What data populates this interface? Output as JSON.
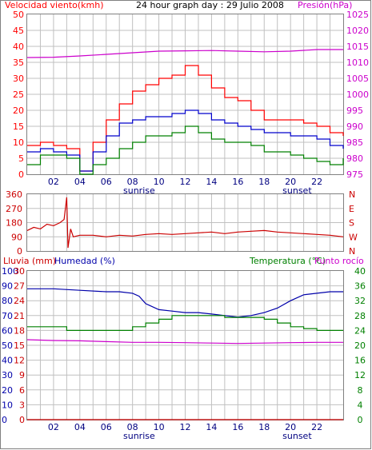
{
  "header": {
    "left_title": "Velocidad viento(kmh)",
    "center_title": "24 hour graph day : 29 Julio 2008",
    "right_title": "Presión(hPa)"
  },
  "colors": {
    "wind_max": "#ff0000",
    "wind_avg": "#0000cc",
    "wind_min": "#008000",
    "pressure": "#cc00cc",
    "direction": "#cc0000",
    "humidity": "#0000aa",
    "temperature": "#008000",
    "dewpoint": "#cc00cc",
    "rain": "#cc0000",
    "grid": "#c0c0c0"
  },
  "chart_data": [
    {
      "type": "line",
      "title": "",
      "x_tick_labels": [
        "02",
        "04",
        "06",
        "08",
        "10",
        "12",
        "14",
        "16",
        "18",
        "20",
        "22"
      ],
      "x_annotations": [
        "sunrise",
        "sunset"
      ],
      "y_left_label": "Velocidad viento(kmh)",
      "y_left_ticks": [
        0,
        5,
        10,
        15,
        20,
        25,
        30,
        35,
        40,
        45,
        50
      ],
      "y_right_label": "Presión(hPa)",
      "y_right_ticks": [
        975,
        980,
        985,
        990,
        995,
        1000,
        1005,
        1010,
        1015,
        1020,
        1025
      ],
      "x_range_hours": [
        0,
        24
      ],
      "grid": true,
      "series": [
        {
          "role": "wind_max",
          "axis": "left",
          "x": [
            0,
            1,
            2,
            3,
            4,
            5,
            6,
            7,
            8,
            9,
            10,
            11,
            12,
            13,
            14,
            15,
            16,
            17,
            18,
            19,
            20,
            21,
            22,
            23,
            24
          ],
          "values": [
            9,
            10,
            9,
            8,
            1,
            10,
            17,
            22,
            26,
            28,
            30,
            31,
            34,
            31,
            27,
            24,
            23,
            20,
            17,
            17,
            17,
            16,
            15,
            13,
            12
          ]
        },
        {
          "role": "wind_avg",
          "axis": "left",
          "x": [
            0,
            1,
            2,
            3,
            4,
            5,
            6,
            7,
            8,
            9,
            10,
            11,
            12,
            13,
            14,
            15,
            16,
            17,
            18,
            19,
            20,
            21,
            22,
            23,
            24
          ],
          "values": [
            7,
            8,
            7,
            6,
            1,
            7,
            12,
            16,
            17,
            18,
            18,
            19,
            20,
            19,
            17,
            16,
            15,
            14,
            13,
            13,
            12,
            12,
            11,
            9,
            8
          ]
        },
        {
          "role": "wind_min",
          "axis": "left",
          "x": [
            0,
            1,
            2,
            3,
            4,
            5,
            6,
            7,
            8,
            9,
            10,
            11,
            12,
            13,
            14,
            15,
            16,
            17,
            18,
            19,
            20,
            21,
            22,
            23,
            24
          ],
          "values": [
            3,
            6,
            6,
            5,
            0,
            3,
            5,
            8,
            10,
            12,
            12,
            13,
            15,
            13,
            11,
            10,
            10,
            9,
            7,
            7,
            6,
            5,
            4,
            3,
            5
          ]
        },
        {
          "role": "pressure",
          "axis": "right",
          "x": [
            0,
            2,
            4,
            6,
            8,
            10,
            12,
            14,
            16,
            18,
            20,
            22,
            24
          ],
          "values": [
            1011.5,
            1011.6,
            1012.0,
            1012.5,
            1013.0,
            1013.5,
            1013.6,
            1013.7,
            1013.5,
            1013.3,
            1013.5,
            1014.0,
            1014.0
          ]
        }
      ]
    },
    {
      "type": "line",
      "title": "",
      "y_left_ticks": [
        0,
        90,
        180,
        270,
        360
      ],
      "y_right_ticks": [
        "N",
        "W",
        "S",
        "E",
        "N"
      ],
      "x_range_hours": [
        0,
        24
      ],
      "grid": true,
      "series": [
        {
          "role": "direction",
          "x": [
            0,
            0.5,
            1,
            1.5,
            2,
            2.5,
            2.8,
            3,
            3.1,
            3.3,
            3.5,
            4,
            5,
            6,
            7,
            8,
            9,
            10,
            11,
            12,
            13,
            14,
            15,
            16,
            17,
            18,
            19,
            20,
            21,
            22,
            23,
            24
          ],
          "values": [
            130,
            150,
            140,
            170,
            160,
            180,
            200,
            340,
            20,
            140,
            90,
            100,
            100,
            90,
            100,
            95,
            105,
            110,
            105,
            110,
            115,
            120,
            110,
            120,
            125,
            130,
            120,
            115,
            110,
            105,
            100,
            90
          ]
        }
      ]
    },
    {
      "type": "line",
      "title": "",
      "x_tick_labels": [
        "02",
        "04",
        "06",
        "08",
        "10",
        "12",
        "14",
        "16",
        "18",
        "20",
        "22"
      ],
      "x_annotations": [
        "sunrise",
        "sunset"
      ],
      "y_left_labels": [
        "Lluvia (mm)",
        "Humedad (%)"
      ],
      "y_left_ticks_rain": [
        0,
        3,
        6,
        9,
        12,
        15,
        18,
        21,
        24,
        27,
        30
      ],
      "y_left_ticks_humidity": [
        0,
        10,
        20,
        30,
        40,
        50,
        60,
        70,
        80,
        90,
        100
      ],
      "y_right_labels": [
        "Temperatura (°C)",
        "Punto rocío"
      ],
      "y_right_ticks": [
        0,
        4,
        8,
        12,
        16,
        20,
        24,
        28,
        32,
        36,
        40
      ],
      "x_range_hours": [
        0,
        24
      ],
      "grid": true,
      "series": [
        {
          "role": "humidity",
          "axis": "humidity",
          "x": [
            0,
            2,
            4,
            6,
            7,
            8,
            8.5,
            9,
            10,
            11,
            12,
            13,
            14,
            15,
            16,
            17,
            18,
            19,
            20,
            21,
            22,
            23,
            24
          ],
          "values": [
            88,
            88,
            87,
            86,
            86,
            85,
            83,
            78,
            74,
            73,
            72,
            72,
            71,
            70,
            69,
            70,
            72,
            75,
            80,
            84,
            85,
            86,
            86
          ]
        },
        {
          "role": "temperature",
          "axis": "temperature",
          "x": [
            0,
            1,
            2,
            3,
            4,
            5,
            6,
            7,
            8,
            9,
            10,
            11,
            12,
            13,
            14,
            15,
            16,
            17,
            18,
            19,
            20,
            21,
            22,
            23,
            24
          ],
          "values": [
            25,
            25,
            25,
            24,
            24,
            24,
            24,
            24,
            25,
            26,
            27,
            28,
            28,
            28,
            28,
            27.5,
            27.5,
            27.5,
            27,
            26,
            25,
            24.5,
            24,
            24,
            24
          ]
        },
        {
          "role": "dewpoint",
          "axis": "temperature",
          "x": [
            0,
            2,
            4,
            6,
            8,
            10,
            12,
            14,
            16,
            18,
            20,
            22,
            24
          ],
          "values": [
            21.5,
            21.3,
            21.2,
            21.0,
            20.8,
            20.8,
            20.7,
            20.6,
            20.5,
            20.6,
            20.7,
            20.8,
            20.8
          ]
        },
        {
          "role": "rain",
          "axis": "rain",
          "x": [
            0,
            24
          ],
          "values": [
            0,
            0
          ]
        }
      ]
    }
  ]
}
